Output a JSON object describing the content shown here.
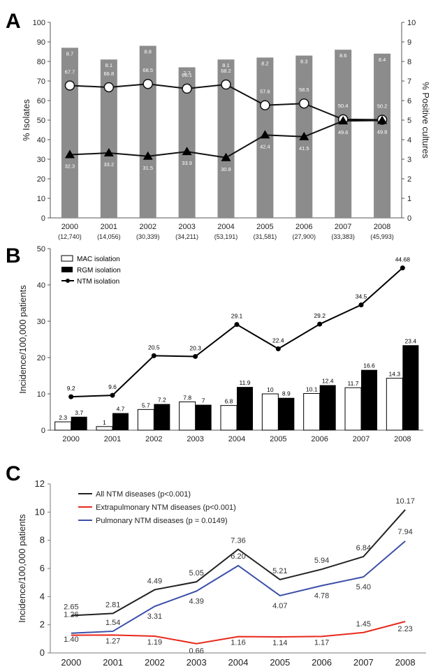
{
  "chart_data": [
    {
      "panel": "A",
      "type": "bar",
      "categories": [
        "2000",
        "2001",
        "2002",
        "2003",
        "2004",
        "2005",
        "2006",
        "2007",
        "2008"
      ],
      "category_sublabels": [
        "(12,740)",
        "(14,056)",
        "(30,339)",
        "(34,211)",
        "(53,191)",
        "(31,581)",
        "(27,900)",
        "(33,383)",
        "(45,993)"
      ],
      "ylabel": "% Isolates",
      "ylim": [
        0,
        100
      ],
      "yticks": [
        0,
        10,
        20,
        30,
        40,
        50,
        60,
        70,
        80,
        90,
        100
      ],
      "y2label": "% Positive cultures",
      "y2lim": [
        0,
        10
      ],
      "y2ticks": [
        0,
        1,
        2,
        3,
        4,
        5,
        6,
        7,
        8,
        9,
        10
      ],
      "bars": {
        "axis": "right",
        "color": "#8c8c8c",
        "values": [
          8.7,
          8.1,
          8.8,
          7.7,
          8.1,
          8.2,
          8.3,
          8.6,
          8.4
        ],
        "labels": [
          "8.7",
          "8.1",
          "8.8",
          "7.7",
          "8.1",
          "8.2",
          "8.3",
          "8.6",
          "8.4"
        ]
      },
      "series": [
        {
          "marker": "circle",
          "axis": "left",
          "values": [
            67.7,
            66.8,
            68.5,
            66.1,
            68.2,
            57.6,
            58.5,
            50.4,
            50.2
          ],
          "labels": [
            "67.7",
            "66.8",
            "68.5",
            "66.1",
            "68.2",
            "57.6",
            "58.5",
            "50.4",
            "50.2"
          ]
        },
        {
          "marker": "triangle",
          "axis": "left",
          "values": [
            32.3,
            33.2,
            31.5,
            33.9,
            30.8,
            42.4,
            41.5,
            49.6,
            49.8
          ],
          "labels": [
            "32.3",
            "33.2",
            "31.5",
            "33.9",
            "30.8",
            "42.4",
            "41.5",
            "49.6",
            "49.8"
          ]
        }
      ]
    },
    {
      "panel": "B",
      "type": "bar",
      "categories": [
        "2000",
        "2001",
        "2002",
        "2003",
        "2004",
        "2005",
        "2006",
        "2007",
        "2008"
      ],
      "ylabel": "Incidence/100,000 patients",
      "ylim": [
        0,
        50
      ],
      "yticks": [
        0,
        10,
        20,
        30,
        40,
        50
      ],
      "legend_position": "top-left",
      "series": [
        {
          "name": "MAC isolation",
          "kind": "bar",
          "color": "#ffffff",
          "values": [
            2.3,
            1,
            5.7,
            7.8,
            6.8,
            10,
            10.1,
            11.7,
            14.3
          ],
          "labels": [
            "2.3",
            "1",
            "5.7",
            "7.8",
            "6.8",
            "10",
            "10.1",
            "11.7",
            "14.3"
          ]
        },
        {
          "name": "RGM isolation",
          "kind": "bar",
          "color": "#000000",
          "values": [
            3.7,
            4.7,
            7.2,
            7,
            11.9,
            8.9,
            12.4,
            16.6,
            23.4
          ],
          "labels": [
            "3.7",
            "4.7",
            "7.2",
            "7",
            "11.9",
            "8.9",
            "12.4",
            "16.6",
            "23.4"
          ]
        },
        {
          "name": "NTM isolation",
          "kind": "line",
          "color": "#000000",
          "values": [
            9.2,
            9.6,
            20.5,
            20.3,
            29.1,
            22.4,
            29.2,
            34.5,
            44.68
          ],
          "labels": [
            "9.2",
            "9.6",
            "20.5",
            "20.3",
            "29.1",
            "22.4",
            "29.2",
            "34.5",
            "44.68"
          ]
        }
      ]
    },
    {
      "panel": "C",
      "type": "line",
      "categories": [
        "2000",
        "2001",
        "2002",
        "2003",
        "2004",
        "2005",
        "2006",
        "2007",
        "2008"
      ],
      "ylabel": "Incidence/100,000 patients",
      "ylim": [
        0,
        12
      ],
      "yticks": [
        0,
        2,
        4,
        6,
        8,
        10,
        12
      ],
      "legend_position": "top-left",
      "series": [
        {
          "name": "All NTM diseases (p<0.001)",
          "color": "#222222",
          "values": [
            2.65,
            2.81,
            4.49,
            5.05,
            7.36,
            5.21,
            5.94,
            6.84,
            10.17
          ],
          "labels": [
            "2.65",
            "2.81",
            "4.49",
            "5.05",
            "7.36",
            "5.21",
            "5.94",
            "6.84",
            "10.17"
          ]
        },
        {
          "name": "Extrapulmonary NTM diseases (p<0.001)",
          "color": "#e8291c",
          "values": [
            1.26,
            1.27,
            1.19,
            0.66,
            1.16,
            1.14,
            1.17,
            1.45,
            2.23
          ],
          "labels": [
            "1.26",
            "1.27",
            "1.19",
            "0.66",
            "1.16",
            "1.14",
            "1.17",
            "1.45",
            "2.23"
          ]
        },
        {
          "name": "Pulmonary NTM diseases (p = 0.0149)",
          "color": "#3b4fa8",
          "values": [
            1.4,
            1.54,
            3.31,
            4.39,
            6.2,
            4.07,
            4.78,
            5.4,
            7.94
          ],
          "labels": [
            "1.40",
            "1.54",
            "3.31",
            "4.39",
            "6.20",
            "4.07",
            "4.78",
            "5.40",
            "7.94"
          ]
        }
      ]
    }
  ]
}
